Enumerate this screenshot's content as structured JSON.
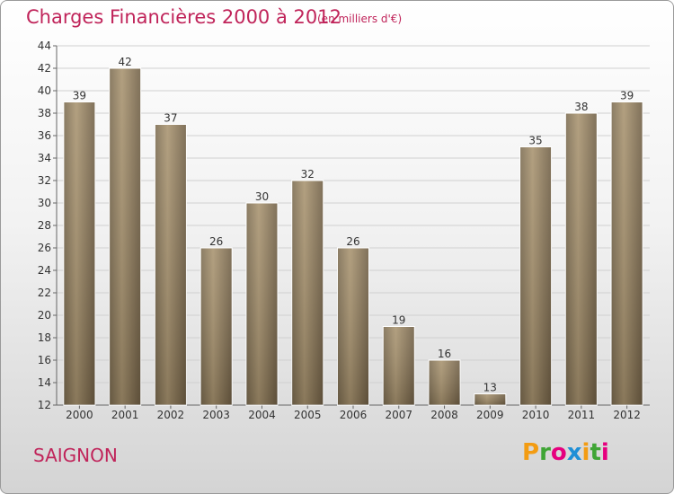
{
  "header": {
    "title": "Charges Financières 2000 à 2012",
    "subtitle": "(en milliers d'€)"
  },
  "footer": {
    "commune": "SAIGNON",
    "logo": [
      "P",
      "r",
      "o",
      "x",
      "i",
      "t",
      "i"
    ],
    "logo_colors": [
      "#f39c12",
      "#3fa535",
      "#e6007e",
      "#1f8fd6",
      "#f39c12",
      "#3fa535",
      "#e6007e"
    ]
  },
  "colors": {
    "bar": "#8e7b5d",
    "bar_light": "#a8936f",
    "bar_dark": "#6f5e44",
    "accent": "#c0245a"
  },
  "chart_data": {
    "type": "bar",
    "title": "Charges Financières 2000 à 2012",
    "subtitle": "(en milliers d'€)",
    "categories": [
      "2000",
      "2001",
      "2002",
      "2003",
      "2004",
      "2005",
      "2006",
      "2007",
      "2008",
      "2009",
      "2010",
      "2011",
      "2012"
    ],
    "values": [
      39,
      42,
      37,
      26,
      30,
      32,
      26,
      19,
      16,
      13,
      35,
      38,
      39
    ],
    "ylim": [
      12,
      44
    ],
    "yticks": [
      12,
      14,
      16,
      18,
      20,
      22,
      24,
      26,
      28,
      30,
      32,
      34,
      36,
      38,
      40,
      42,
      44
    ],
    "grid": true
  }
}
